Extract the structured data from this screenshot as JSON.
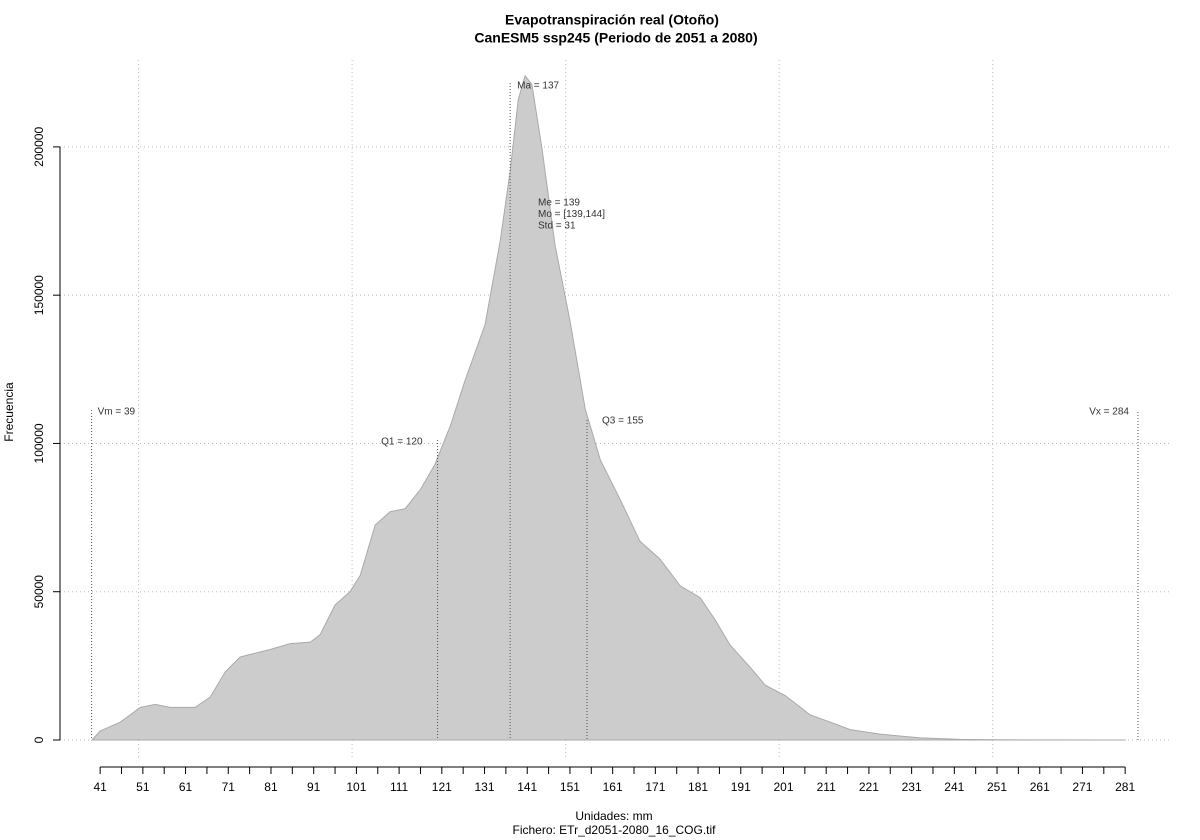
{
  "chart_data": {
    "type": "area",
    "title": "Evapotranspiración real (Otoño)",
    "subtitle": "CanESM5 ssp245 (Periodo de 2051 a 2080)",
    "x_label": "Unidades: mm",
    "footer": "Fichero: ETr_d2051-2080_16_COG.tif",
    "y_label": "Frecuencia",
    "color": "#cccccc",
    "x": [
      39.1,
      41,
      45.7,
      50.4,
      53.9,
      57.4,
      63.2,
      66.8,
      70.3,
      73.8,
      80.8,
      85.5,
      90.2,
      92.5,
      96,
      99.5,
      101.9,
      105.4,
      108.9,
      112.4,
      116,
      119.4,
      123,
      126.5,
      131.1,
      134.7,
      137,
      138.9,
      140.5,
      142.1,
      144.5,
      147.5,
      151,
      154.6,
      158.1,
      162.8,
      167.4,
      172.1,
      176.8,
      181.5,
      185,
      188.5,
      193.2,
      196.7,
      201.4,
      207.2,
      212,
      216.6,
      223.6,
      233,
      242.4,
      251.7,
      281
    ],
    "values": [
      0,
      3000,
      6000,
      11000,
      12000,
      11000,
      11000,
      14500,
      23000,
      28000,
      30500,
      32500,
      33000,
      35500,
      45500,
      50000,
      55500,
      72500,
      77000,
      78000,
      84500,
      93000,
      106000,
      121500,
      140000,
      168500,
      192000,
      216000,
      224000,
      221000,
      199000,
      167000,
      141500,
      111500,
      94500,
      81000,
      67000,
      61000,
      52000,
      48000,
      40500,
      32000,
      24500,
      18500,
      15000,
      8500,
      6000,
      3500,
      2000,
      700,
      200,
      50,
      0
    ],
    "xlim": [
      31.6,
      291.5
    ],
    "ylim": [
      -6745,
      229300
    ],
    "xticks": [
      41,
      51,
      61,
      71,
      81,
      91,
      101,
      111,
      121,
      131,
      141,
      151,
      161,
      171,
      181,
      191,
      201,
      211,
      221,
      231,
      241,
      251,
      261,
      271,
      281
    ],
    "xticks_minor": [
      46,
      56,
      66,
      76,
      86,
      96,
      106,
      116,
      126,
      136,
      146,
      156,
      166,
      176,
      186,
      196,
      206,
      216,
      226,
      236,
      246,
      256,
      266,
      276
    ],
    "xgrid": [
      50,
      100,
      150,
      200,
      250
    ],
    "yticks": [
      0,
      50000,
      100000,
      150000,
      200000
    ],
    "grid": true,
    "markers": [
      {
        "label": "Vm = 39",
        "value": 39
      },
      {
        "label": "Q1 = 120",
        "value": 120
      },
      {
        "label": "Ma = 137",
        "value": 137
      },
      {
        "label": "Q3 = 155",
        "value": 155
      },
      {
        "label": "Vx = 284",
        "value": 284
      }
    ],
    "stats": [
      "Me = 139",
      "Mo = [139,144]",
      "Std = 31"
    ]
  }
}
